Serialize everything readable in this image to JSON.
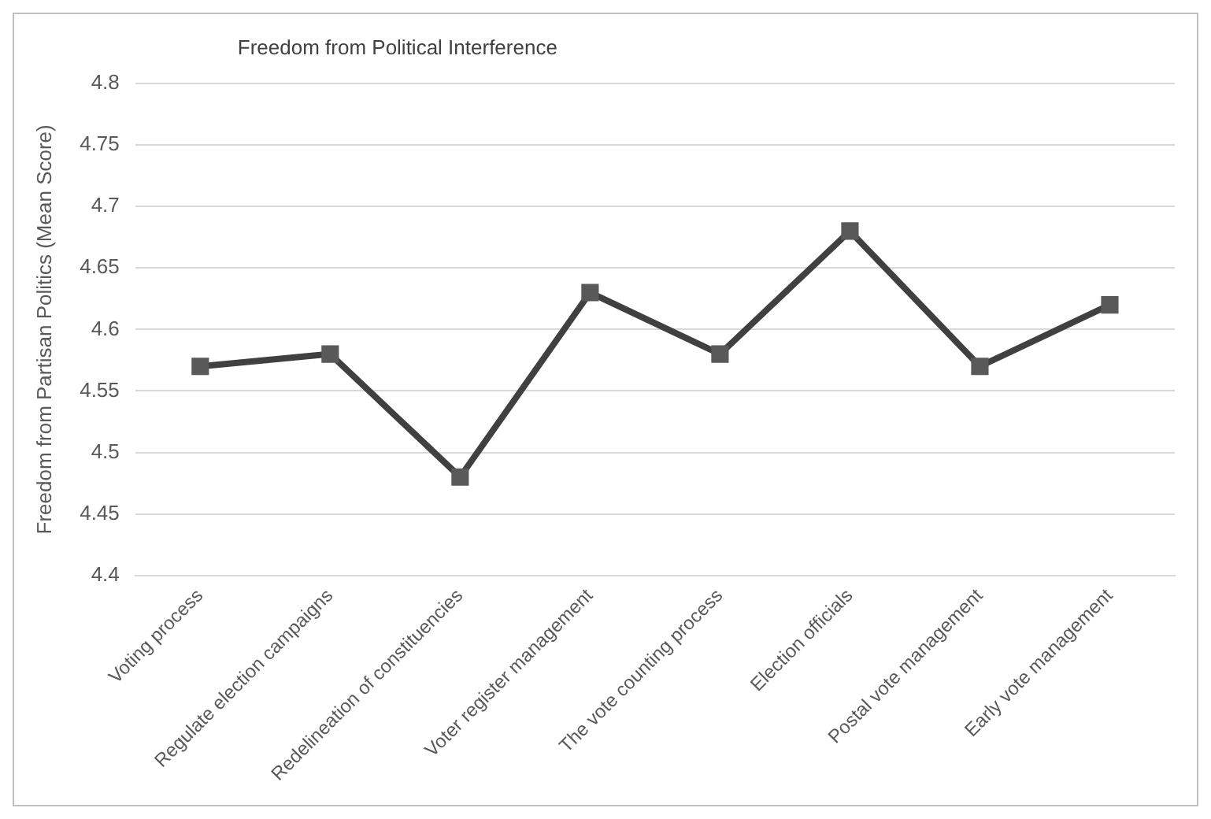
{
  "chart_data": {
    "type": "line",
    "title": "Freedom from Political Interference",
    "ylabel": "Freedom from Partisan Politics (Mean Score)",
    "categories": [
      "Voting process",
      "Regulate election campaigns",
      "Redelineation of constituencies",
      "Voter register management",
      "The vote counting process",
      "Election officials",
      "Postal vote management",
      "Early vote management"
    ],
    "series": [
      {
        "color": "#404040",
        "values": [
          4.57,
          4.58,
          4.48,
          4.63,
          4.58,
          4.68,
          4.57,
          4.62
        ]
      }
    ],
    "ylim": [
      4.4,
      4.8
    ],
    "yticks": [
      4.4,
      4.45,
      4.5,
      4.55,
      4.6,
      4.65,
      4.7,
      4.75,
      4.8
    ],
    "grid": "y",
    "legend": false,
    "marker": "square",
    "line_style": "solid"
  }
}
